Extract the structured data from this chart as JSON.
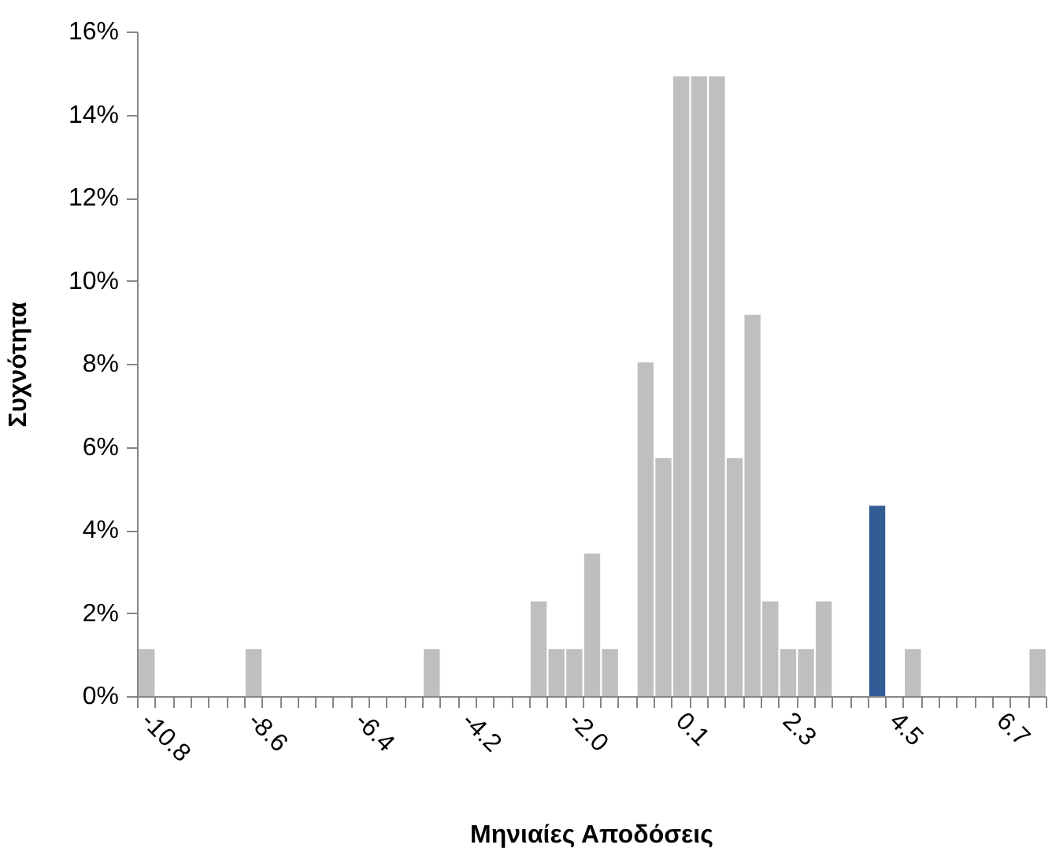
{
  "chart_data": {
    "type": "bar",
    "xlabel": "Μηνιαίες Αποδόσεις",
    "ylabel": "Συχνότητα",
    "categories": [
      "-10.8",
      null,
      null,
      null,
      null,
      null,
      "-8.6",
      null,
      null,
      null,
      null,
      null,
      "-6.4",
      null,
      null,
      null,
      null,
      null,
      "-4.2",
      null,
      null,
      null,
      null,
      null,
      "-2.0",
      null,
      null,
      null,
      null,
      null,
      "0.1",
      null,
      null,
      null,
      null,
      null,
      "2.3",
      null,
      null,
      null,
      null,
      null,
      "4.5",
      null,
      null,
      null,
      null,
      null,
      "6.7",
      null,
      null
    ],
    "values": [
      1.15,
      0,
      0,
      0,
      0,
      0,
      1.15,
      0,
      0,
      0,
      0,
      0,
      0,
      0,
      0,
      0,
      1.15,
      0,
      0,
      0,
      0,
      0,
      2.3,
      1.15,
      1.15,
      3.45,
      1.15,
      0,
      8.05,
      5.75,
      14.94,
      14.94,
      14.94,
      5.75,
      9.2,
      2.3,
      1.15,
      1.15,
      2.3,
      0,
      0,
      4.6,
      0,
      1.15,
      0,
      0,
      0,
      0,
      0,
      0,
      1.15
    ],
    "colors": [
      "#bfbfbf",
      "#bfbfbf",
      "#bfbfbf",
      "#bfbfbf",
      "#bfbfbf",
      "#bfbfbf",
      "#bfbfbf",
      "#bfbfbf",
      "#bfbfbf",
      "#bfbfbf",
      "#bfbfbf",
      "#bfbfbf",
      "#bfbfbf",
      "#bfbfbf",
      "#bfbfbf",
      "#bfbfbf",
      "#bfbfbf",
      "#bfbfbf",
      "#bfbfbf",
      "#bfbfbf",
      "#bfbfbf",
      "#bfbfbf",
      "#bfbfbf",
      "#bfbfbf",
      "#bfbfbf",
      "#bfbfbf",
      "#bfbfbf",
      "#bfbfbf",
      "#bfbfbf",
      "#bfbfbf",
      "#bfbfbf",
      "#bfbfbf",
      "#bfbfbf",
      "#bfbfbf",
      "#bfbfbf",
      "#bfbfbf",
      "#bfbfbf",
      "#bfbfbf",
      "#bfbfbf",
      "#bfbfbf",
      "#bfbfbf",
      "#335c96",
      "#bfbfbf",
      "#bfbfbf",
      "#bfbfbf",
      "#bfbfbf",
      "#bfbfbf",
      "#bfbfbf",
      "#bfbfbf",
      "#bfbfbf",
      "#bfbfbf"
    ],
    "ylim": [
      0,
      16
    ],
    "yticks": [
      {
        "value": 0,
        "label": "0%"
      },
      {
        "value": 2,
        "label": "2%"
      },
      {
        "value": 4,
        "label": "4%"
      },
      {
        "value": 6,
        "label": "6%"
      },
      {
        "value": 8,
        "label": "8%"
      },
      {
        "value": 10,
        "label": "10%"
      },
      {
        "value": 12,
        "label": "12%"
      },
      {
        "value": 14,
        "label": "14%"
      },
      {
        "value": 16,
        "label": "16%"
      }
    ],
    "grid": false
  }
}
